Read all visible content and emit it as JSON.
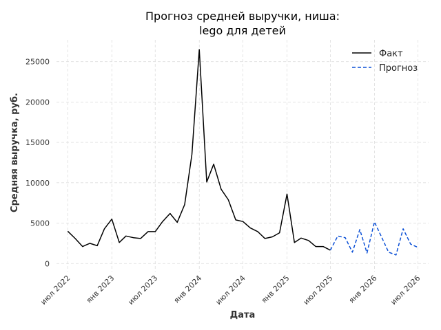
{
  "chart_data": {
    "type": "line",
    "title_lines": [
      "Прогноз средней выручки, ниша:",
      "lego для детей"
    ],
    "xlabel": "Дата",
    "ylabel": "Средняя выручка, руб.",
    "ylim": [
      -1000,
      27700
    ],
    "xlim": [
      "2022-05-15",
      "2026-08-15"
    ],
    "y_ticks": [
      0,
      5000,
      10000,
      15000,
      20000,
      25000
    ],
    "x_ticks": [
      {
        "date": "2022-07-01",
        "label": "июл 2022"
      },
      {
        "date": "2023-01-01",
        "label": "янв 2023"
      },
      {
        "date": "2023-07-01",
        "label": "июл 2023"
      },
      {
        "date": "2024-01-01",
        "label": "янв 2024"
      },
      {
        "date": "2024-07-01",
        "label": "июл 2024"
      },
      {
        "date": "2025-01-01",
        "label": "янв 2025"
      },
      {
        "date": "2025-07-01",
        "label": "июл 2025"
      },
      {
        "date": "2026-01-01",
        "label": "янв 2026"
      },
      {
        "date": "2026-07-01",
        "label": "июл 2026"
      }
    ],
    "grid": true,
    "legend_position": "top-right",
    "series": [
      {
        "name": "Факт",
        "color": "#000000",
        "style": "solid",
        "points": [
          [
            "2022-07-01",
            4000
          ],
          [
            "2022-08-01",
            3100
          ],
          [
            "2022-09-01",
            2100
          ],
          [
            "2022-10-01",
            2500
          ],
          [
            "2022-11-01",
            2200
          ],
          [
            "2022-12-01",
            4300
          ],
          [
            "2023-01-01",
            5500
          ],
          [
            "2023-02-01",
            2600
          ],
          [
            "2023-03-01",
            3400
          ],
          [
            "2023-04-01",
            3200
          ],
          [
            "2023-05-01",
            3100
          ],
          [
            "2023-06-01",
            3950
          ],
          [
            "2023-07-01",
            3950
          ],
          [
            "2023-08-01",
            5200
          ],
          [
            "2023-09-01",
            6200
          ],
          [
            "2023-10-01",
            5100
          ],
          [
            "2023-11-01",
            7300
          ],
          [
            "2023-12-01",
            13500
          ],
          [
            "2024-01-01",
            26500
          ],
          [
            "2024-02-01",
            10100
          ],
          [
            "2024-03-01",
            12300
          ],
          [
            "2024-04-01",
            9200
          ],
          [
            "2024-05-01",
            7900
          ],
          [
            "2024-06-01",
            5400
          ],
          [
            "2024-07-01",
            5200
          ],
          [
            "2024-08-01",
            4400
          ],
          [
            "2024-09-01",
            3950
          ],
          [
            "2024-10-01",
            3100
          ],
          [
            "2024-11-01",
            3300
          ],
          [
            "2024-12-01",
            3800
          ],
          [
            "2025-01-01",
            8600
          ],
          [
            "2025-02-01",
            2600
          ],
          [
            "2025-03-01",
            3150
          ],
          [
            "2025-04-01",
            2850
          ],
          [
            "2025-05-01",
            2100
          ],
          [
            "2025-06-01",
            2100
          ],
          [
            "2025-07-01",
            1650
          ]
        ]
      },
      {
        "name": "Прогноз",
        "color": "#0a4fd6",
        "style": "dashed",
        "points": [
          [
            "2025-07-01",
            1650
          ],
          [
            "2025-08-01",
            3400
          ],
          [
            "2025-09-01",
            3200
          ],
          [
            "2025-10-01",
            1400
          ],
          [
            "2025-11-01",
            4200
          ],
          [
            "2025-12-01",
            1300
          ],
          [
            "2026-01-01",
            5150
          ],
          [
            "2026-02-01",
            3200
          ],
          [
            "2026-03-01",
            1400
          ],
          [
            "2026-04-01",
            1050
          ],
          [
            "2026-05-01",
            4300
          ],
          [
            "2026-06-01",
            2400
          ],
          [
            "2026-07-01",
            2000
          ]
        ]
      }
    ]
  }
}
